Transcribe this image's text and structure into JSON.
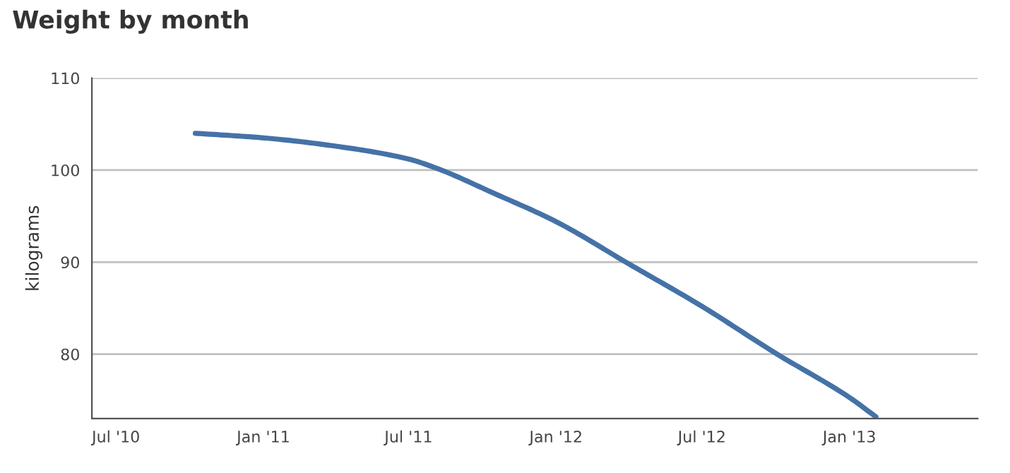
{
  "chart_data": {
    "type": "line",
    "title": "Weight by month",
    "ylabel": "kilograms",
    "x": [
      "2010-10-08",
      "2011-01-01",
      "2011-04-01",
      "2011-07-01",
      "2011-08-05",
      "2011-10-15",
      "2012-01-01",
      "2012-04-01",
      "2012-07-01",
      "2012-10-01",
      "2013-01-01",
      "2013-02-03"
    ],
    "series": [
      {
        "color": "#4572a7",
        "values": [
          104.0,
          103.5,
          102.6,
          101.2,
          100.2,
          97.5,
          94.4,
          89.8,
          85.2,
          80.1,
          75.3,
          73.2
        ]
      }
    ],
    "xlim": [
      "2010-06-01",
      "2013-06-10"
    ],
    "xticks": [
      {
        "value": "2010-07-01",
        "label": "Jul '10"
      },
      {
        "value": "2011-01-01",
        "label": "Jan '11"
      },
      {
        "value": "2011-07-01",
        "label": "Jul '11"
      },
      {
        "value": "2012-01-01",
        "label": "Jan '12"
      },
      {
        "value": "2012-07-01",
        "label": "Jul '12"
      },
      {
        "value": "2013-01-01",
        "label": "Jan '13"
      }
    ],
    "ylim": [
      73,
      110
    ],
    "yticks": [
      80,
      90,
      100,
      110
    ],
    "grid": "y",
    "marker": "none",
    "line_style": "solid"
  }
}
